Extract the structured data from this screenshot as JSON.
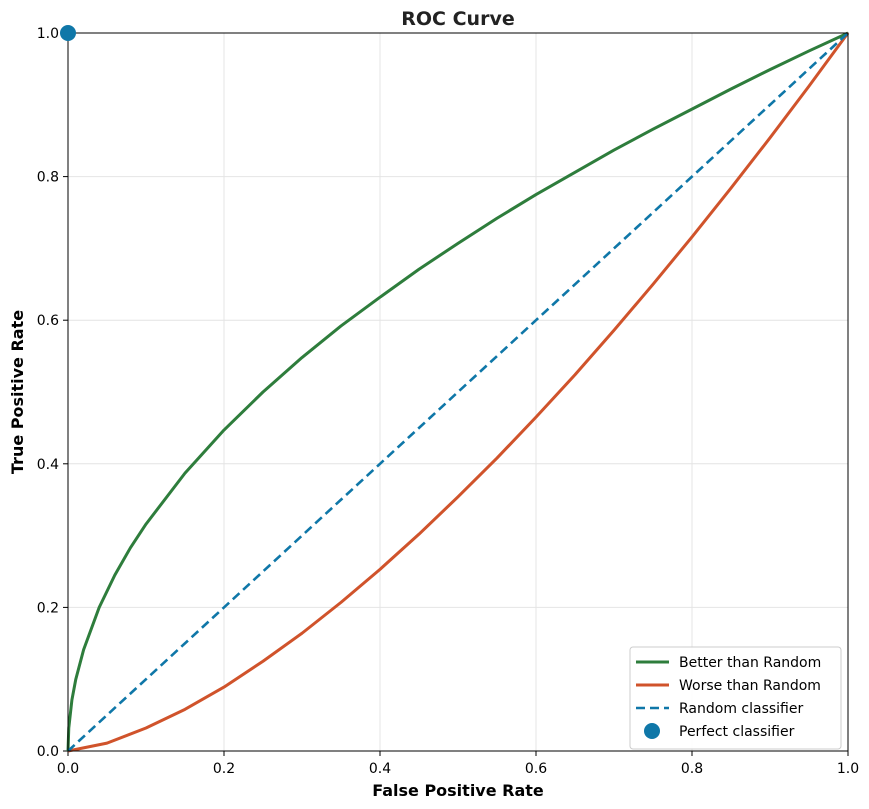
{
  "chart_data": {
    "type": "line",
    "title": "ROC Curve",
    "xlabel": "False Positive Rate",
    "ylabel": "True Positive Rate",
    "xlim": [
      0.0,
      1.0
    ],
    "ylim": [
      0.0,
      1.0
    ],
    "xticks": [
      "0.0",
      "0.2",
      "0.4",
      "0.6",
      "0.8",
      "1.0"
    ],
    "yticks": [
      "0.0",
      "0.2",
      "0.4",
      "0.6",
      "0.8",
      "1.0"
    ],
    "grid": true,
    "legend_position": "lower-right",
    "series": [
      {
        "name": "Better than Random",
        "color": "#2e7d3c",
        "style": "solid",
        "x": [
          0.0,
          0.001,
          0.005,
          0.01,
          0.02,
          0.04,
          0.06,
          0.08,
          0.1,
          0.15,
          0.2,
          0.25,
          0.3,
          0.35,
          0.4,
          0.45,
          0.5,
          0.55,
          0.6,
          0.65,
          0.7,
          0.75,
          0.8,
          0.85,
          0.9,
          0.95,
          1.0
        ],
        "y": [
          0.0,
          0.032,
          0.071,
          0.1,
          0.141,
          0.2,
          0.245,
          0.283,
          0.316,
          0.387,
          0.447,
          0.5,
          0.548,
          0.592,
          0.632,
          0.671,
          0.707,
          0.742,
          0.775,
          0.806,
          0.837,
          0.866,
          0.894,
          0.922,
          0.949,
          0.975,
          1.0
        ]
      },
      {
        "name": "Worse than Random",
        "color": "#d0532b",
        "style": "solid",
        "x": [
          0.0,
          0.05,
          0.1,
          0.15,
          0.2,
          0.25,
          0.3,
          0.35,
          0.4,
          0.45,
          0.5,
          0.55,
          0.6,
          0.65,
          0.7,
          0.75,
          0.8,
          0.85,
          0.9,
          0.95,
          1.0
        ],
        "y": [
          0.0,
          0.011,
          0.032,
          0.058,
          0.089,
          0.125,
          0.164,
          0.207,
          0.253,
          0.302,
          0.354,
          0.408,
          0.465,
          0.524,
          0.586,
          0.65,
          0.716,
          0.784,
          0.854,
          0.926,
          1.0
        ]
      },
      {
        "name": "Random classifier",
        "color": "#0f77a8",
        "style": "dashed",
        "x": [
          0.0,
          1.0
        ],
        "y": [
          0.0,
          1.0
        ]
      }
    ],
    "points": [
      {
        "name": "Perfect classifier",
        "color": "#0f77a8",
        "x": 0.0,
        "y": 1.0
      }
    ]
  }
}
